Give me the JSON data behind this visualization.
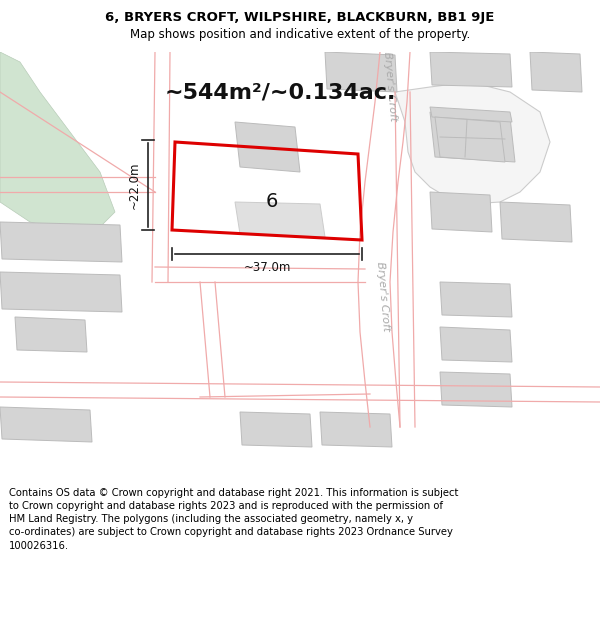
{
  "title_line1": "6, BRYERS CROFT, WILPSHIRE, BLACKBURN, BB1 9JE",
  "title_line2": "Map shows position and indicative extent of the property.",
  "area_text": "~544m²/~0.134ac.",
  "label_6": "6",
  "dim_width": "~37.0m",
  "dim_height": "~22.0m",
  "road_label_top": "Bryer's Croft",
  "road_label_bot": "Bryer's Croft",
  "footer_text": "Contains OS data © Crown copyright and database right 2021. This information is subject to Crown copyright and database rights 2023 and is reproduced with the permission of HM Land Registry. The polygons (including the associated geometry, namely x, y co-ordinates) are subject to Crown copyright and database rights 2023 Ordnance Survey 100026316.",
  "bg_color": "#ffffff",
  "map_bg": "#ffffff",
  "plot_color": "#dd0000",
  "road_line_color": "#f0aaaa",
  "road_outline_color": "#cccccc",
  "building_fill": "#d4d4d4",
  "building_edge": "#bbbbbb",
  "green_fill": "#d0e4d0",
  "green_edge": "#b8ccb8",
  "title_fontsize": 9.5,
  "subtitle_fontsize": 8.5,
  "area_fontsize": 16,
  "label_fontsize": 14,
  "dim_fontsize": 8.5,
  "footer_fontsize": 7.2,
  "road_label_color": "#aaaaaa",
  "road_label_fontsize": 8
}
